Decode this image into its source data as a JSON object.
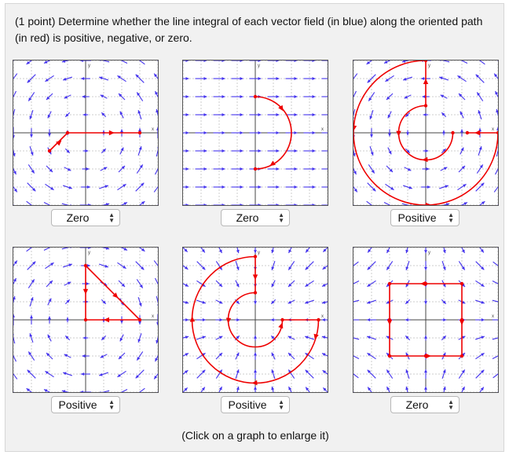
{
  "prompt": {
    "text": "(1 point) Determine whether the line integral of each vector field (in blue) along the oriented path (in red) is positive, negative, or zero."
  },
  "graphs": [
    {
      "field": "rotation-ccw",
      "path": "segment-then-line-right",
      "answer": "Zero"
    },
    {
      "field": "uniform-right",
      "path": "right-semicircle-down",
      "answer": "Zero"
    },
    {
      "field": "rotation-ccw",
      "path": "spiral-ccw",
      "answer": "Positive"
    },
    {
      "field": "rotation-cw",
      "path": "closed-triangle",
      "answer": "Positive"
    },
    {
      "field": "radial-in",
      "path": "spiral-inward",
      "answer": "Positive"
    },
    {
      "field": "saddle",
      "path": "closed-rectangle",
      "answer": "Zero"
    }
  ],
  "hint": "(Click on a graph to enlarge it)",
  "axis_labels": {
    "x": "x",
    "y": "y"
  },
  "colors": {
    "field": "#4433ee",
    "path": "#ee0000",
    "grid": "#cccccc",
    "axis": "#444444"
  }
}
